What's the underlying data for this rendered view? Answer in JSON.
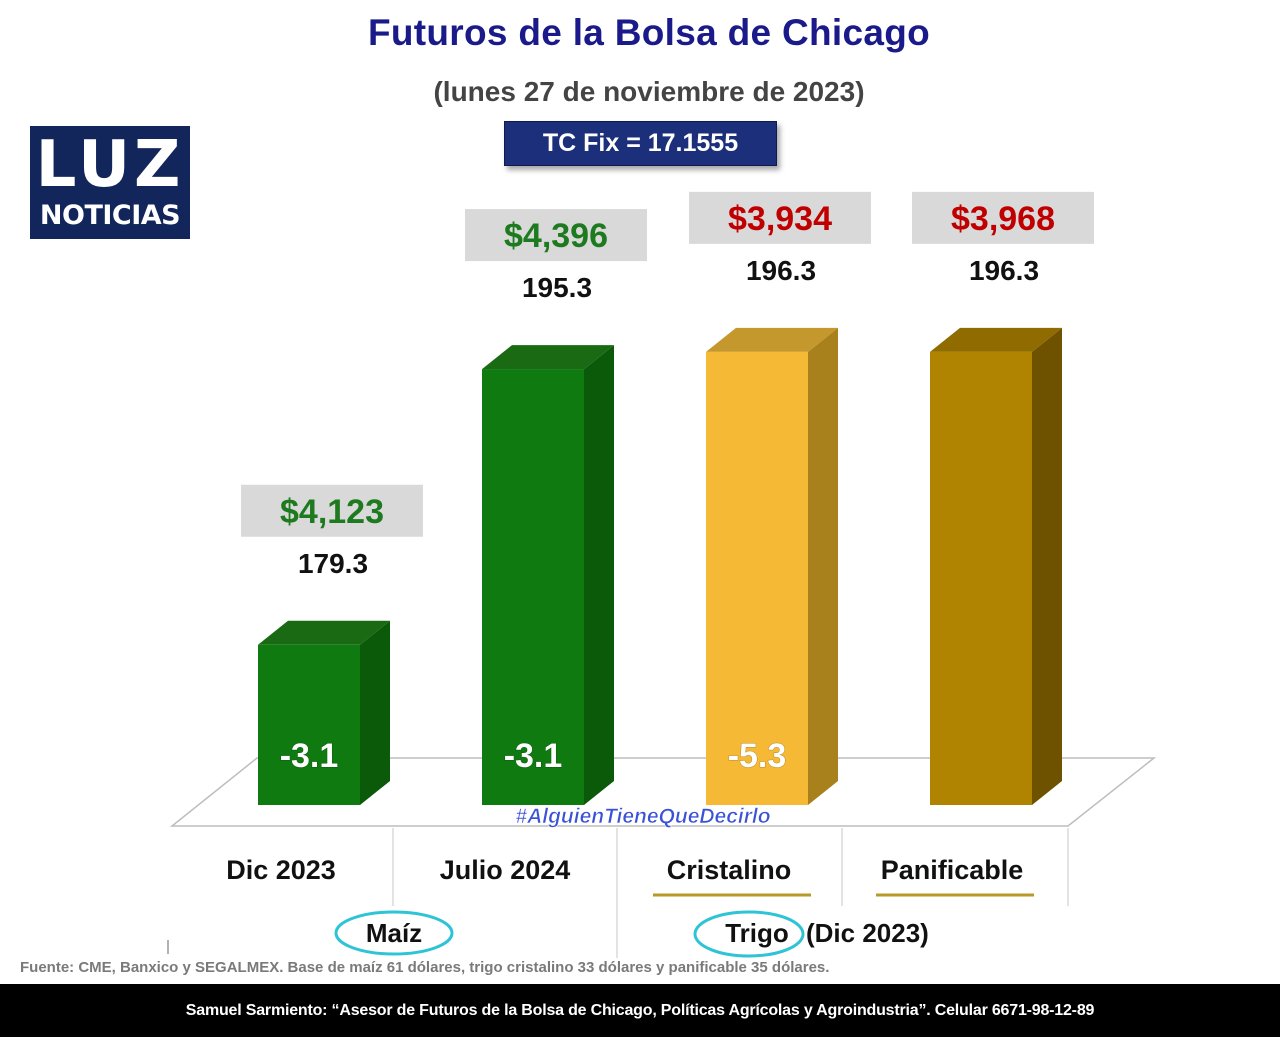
{
  "header": {
    "title": "Futuros de la Bolsa de Chicago",
    "subtitle": "(lunes 27 de noviembre de 2023)",
    "tc_fix": "TC Fix = 17.1555"
  },
  "logo": {
    "top": "LUZ",
    "bottom": "NOTICIAS"
  },
  "chart_data": {
    "type": "bar",
    "categories": [
      "Dic 2023",
      "Julio 2024",
      "Cristalino",
      "Panificable"
    ],
    "values": [
      179.3,
      195.3,
      196.3,
      196.3
    ],
    "value_labels": [
      "179.3",
      "195.3",
      "196.3",
      "196.3"
    ],
    "peso_labels": [
      "$4,123",
      "$4,396",
      "$3,934",
      "$3,968"
    ],
    "change_labels": [
      "-3.1",
      "-3.1",
      "-5.3",
      ""
    ],
    "changes": [
      -3.1,
      -3.1,
      -5.3,
      null
    ],
    "groups": [
      {
        "label": "Maíz",
        "suffix": ""
      },
      {
        "label": "Trigo",
        "suffix": "(Dic 2023)"
      }
    ],
    "colors": {
      "front": [
        "#0f7a10",
        "#0f7a10",
        "#f5b935",
        "#b08300"
      ],
      "side": [
        "#0a5a0a",
        "#0a5a0a",
        "#a8801c",
        "#6e5200"
      ],
      "top": [
        "#1a6a14",
        "#1a6a14",
        "#c4982c",
        "#8f6b00"
      ],
      "peso_text": [
        "#1e7a1e",
        "#1e7a1e",
        "#c00000",
        "#c00000"
      ],
      "underline": [
        "",
        "",
        "#b89a2a",
        "#b89a2a"
      ],
      "circle": "#2ec4d6"
    },
    "watermark": "#AlguienTieneQueDecirlo"
  },
  "source_note": "Fuente: CME, Banxico y SEGALMEX. Base de maíz 61 dólares, trigo cristalino 33 dólares y panificable 35 dólares.",
  "footer_text": "Samuel Sarmiento: “Asesor de Futuros de la Bolsa de Chicago, Políticas Agrícolas y Agroindustria”. Celular 6671-98-12-89"
}
